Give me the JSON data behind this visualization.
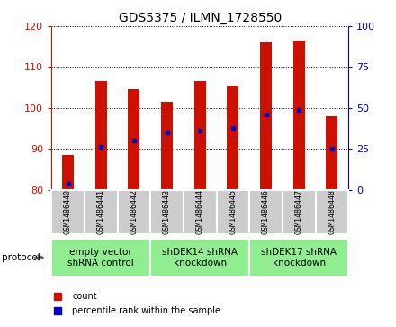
{
  "title": "GDS5375 / ILMN_1728550",
  "samples": [
    "GSM1486440",
    "GSM1486441",
    "GSM1486442",
    "GSM1486443",
    "GSM1486444",
    "GSM1486445",
    "GSM1486446",
    "GSM1486447",
    "GSM1486448"
  ],
  "count_values": [
    88.5,
    106.5,
    104.5,
    101.5,
    106.5,
    105.5,
    116.0,
    116.5,
    98.0
  ],
  "percentile_values": [
    81.5,
    90.5,
    92.0,
    94.0,
    94.5,
    95.0,
    98.5,
    99.5,
    90.0
  ],
  "ylim_left": [
    80,
    120
  ],
  "ylim_right": [
    0,
    100
  ],
  "yticks_left": [
    80,
    90,
    100,
    110,
    120
  ],
  "yticks_right": [
    0,
    25,
    50,
    75,
    100
  ],
  "bar_color": "#cc1100",
  "dot_color": "#0000cc",
  "bar_bottom": 80,
  "bar_width": 0.35,
  "groups": [
    {
      "label": "empty vector\nshRNA control",
      "start": 0,
      "end": 3
    },
    {
      "label": "shDEK14 shRNA\nknockdown",
      "start": 3,
      "end": 6
    },
    {
      "label": "shDEK17 shRNA\nknockdown",
      "start": 6,
      "end": 9
    }
  ],
  "sample_bg_color": "#cccccc",
  "group_bg_color": "#90ee90",
  "protocol_label": "protocol",
  "legend_count_label": "count",
  "legend_pct_label": "percentile rank within the sample",
  "title_fontsize": 10,
  "tick_fontsize": 8,
  "sample_fontsize": 6,
  "group_fontsize": 7.5,
  "legend_fontsize": 7
}
